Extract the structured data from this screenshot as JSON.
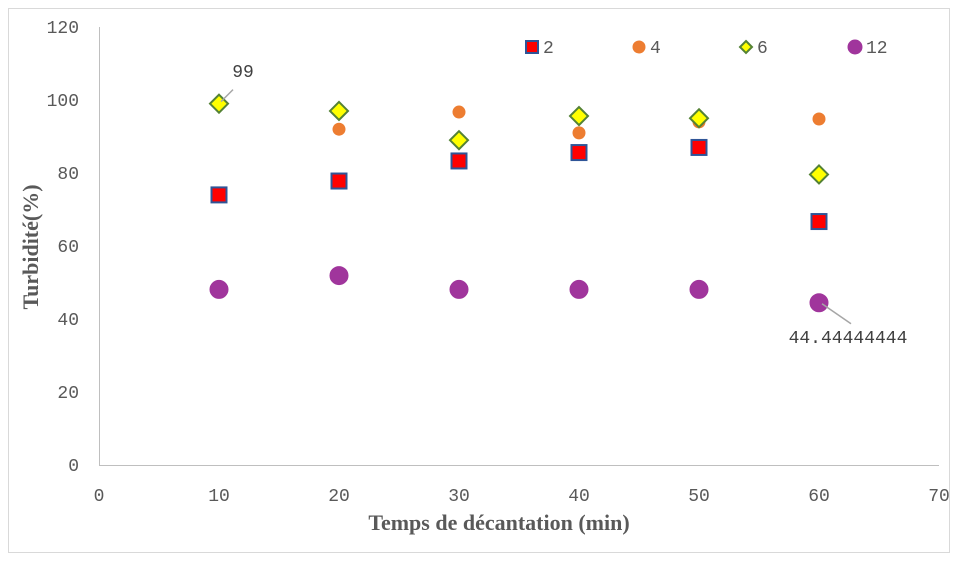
{
  "chart_data": {
    "type": "scatter",
    "title": "",
    "xlabel": "Temps de décantation (min)",
    "ylabel": "Turbidité(%)",
    "xlim": [
      0,
      70
    ],
    "ylim": [
      0,
      120
    ],
    "xticks": [
      0,
      10,
      20,
      30,
      40,
      50,
      60,
      70
    ],
    "yticks": [
      0,
      20,
      40,
      60,
      80,
      100,
      120
    ],
    "grid": false,
    "legend_position": "top",
    "x": [
      10,
      20,
      30,
      40,
      50,
      60
    ],
    "series": [
      {
        "name": "2",
        "marker": "square",
        "color": "#ff0000",
        "edge": "#2f5597",
        "values": [
          74,
          77.8,
          83.3,
          85.6,
          87,
          66.7
        ]
      },
      {
        "name": "4",
        "marker": "circle",
        "color": "#ed7d31",
        "edge": "#ed7d31",
        "values": [
          null,
          92,
          96.7,
          91,
          94,
          94.8
        ]
      },
      {
        "name": "6",
        "marker": "diamond",
        "color": "#ffff00",
        "edge": "#548235",
        "values": [
          99,
          97,
          89,
          95.6,
          95,
          79.6
        ]
      },
      {
        "name": "12",
        "marker": "circle-large",
        "color": "#a0359c",
        "edge": "#a0359c",
        "values": [
          48.1,
          51.9,
          48.1,
          48.1,
          48.1,
          44.44444444
        ]
      }
    ],
    "annotations": [
      {
        "text": "99",
        "x": 10,
        "y": 99
      },
      {
        "text": "44.44444444",
        "x": 60,
        "y": 44.44444444
      }
    ]
  }
}
